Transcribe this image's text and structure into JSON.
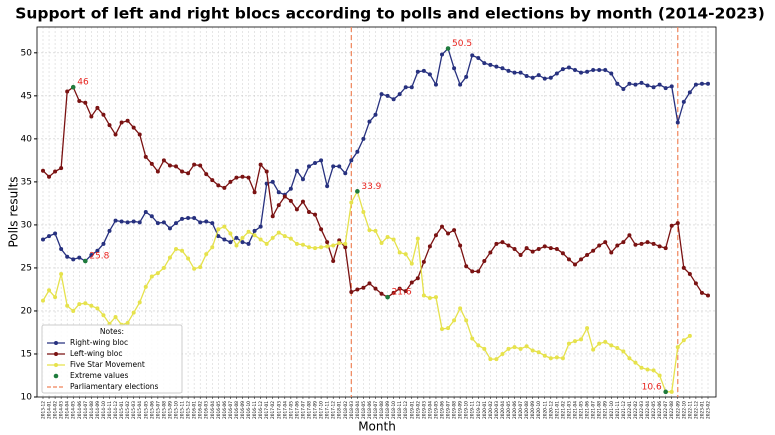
{
  "chart_data": {
    "type": "line",
    "title": "Support of left and right blocs according to polls and elections by month (2014-2023)",
    "x_label": "Month",
    "y_label": "Polls results",
    "categories": [
      "2013-12",
      "2014-01",
      "2014-02",
      "2014-03",
      "2014-04",
      "2014-05",
      "2014-06",
      "2014-07",
      "2014-08",
      "2014-09",
      "2014-10",
      "2014-11",
      "2014-12",
      "2015-01",
      "2015-02",
      "2015-03",
      "2015-04",
      "2015-05",
      "2015-06",
      "2015-07",
      "2015-08",
      "2015-09",
      "2015-10",
      "2015-11",
      "2015-12",
      "2016-01",
      "2016-02",
      "2016-03",
      "2016-04",
      "2016-05",
      "2016-06",
      "2016-07",
      "2016-08",
      "2016-09",
      "2016-10",
      "2016-11",
      "2016-12",
      "2017-01",
      "2017-02",
      "2017-03",
      "2017-04",
      "2017-05",
      "2017-06",
      "2017-07",
      "2017-08",
      "2017-09",
      "2017-10",
      "2017-11",
      "2017-12",
      "2018-01",
      "2018-02",
      "2018-03",
      "2018-04",
      "2018-05",
      "2018-06",
      "2018-07",
      "2018-08",
      "2018-09",
      "2018-10",
      "2018-11",
      "2018-12",
      "2019-01",
      "2019-02",
      "2019-03",
      "2019-04",
      "2019-05",
      "2019-06",
      "2019-07",
      "2019-08",
      "2019-09",
      "2019-10",
      "2019-11",
      "2019-12",
      "2020-01",
      "2020-02",
      "2020-03",
      "2020-04",
      "2020-05",
      "2020-06",
      "2020-07",
      "2020-08",
      "2020-09",
      "2020-10",
      "2020-11",
      "2020-12",
      "2021-01",
      "2021-02",
      "2021-03",
      "2021-04",
      "2021-05",
      "2021-06",
      "2021-07",
      "2021-08",
      "2021-09",
      "2021-10",
      "2021-11",
      "2021-12",
      "2022-01",
      "2022-02",
      "2022-03",
      "2022-04",
      "2022-05",
      "2022-06",
      "2022-07",
      "2022-08",
      "2022-09",
      "2022-10",
      "2022-11",
      "2022-12",
      "2023-01",
      "2023-02"
    ],
    "series": [
      {
        "name": "Right-wing bloc",
        "color": "#27317f",
        "values": [
          28.3,
          28.7,
          29.0,
          27.2,
          26.3,
          26.0,
          26.2,
          25.8,
          26.5,
          27.0,
          27.8,
          29.3,
          30.5,
          30.4,
          30.3,
          30.4,
          30.3,
          31.5,
          31.0,
          30.2,
          30.3,
          29.6,
          30.2,
          30.7,
          30.8,
          30.8,
          30.3,
          30.4,
          30.2,
          28.7,
          28.3,
          28.0,
          28.5,
          28.0,
          27.8,
          29.3,
          29.8,
          34.8,
          35.0,
          33.8,
          33.5,
          34.2,
          36.3,
          35.3,
          36.8,
          37.2,
          37.5,
          34.5,
          36.8,
          36.8,
          36.0,
          37.5,
          38.5,
          40.0,
          42.0,
          42.8,
          45.2,
          45.0,
          44.6,
          45.2,
          46.0,
          46.0,
          47.8,
          47.9,
          47.5,
          46.3,
          49.8,
          50.5,
          48.2,
          46.3,
          47.2,
          49.7,
          49.4,
          48.8,
          48.6,
          48.4,
          48.2,
          47.9,
          47.7,
          47.7,
          47.3,
          47.1,
          47.4,
          47.0,
          47.1,
          47.6,
          48.1,
          48.3,
          48.0,
          47.7,
          47.8,
          48.0,
          48.0,
          48.0,
          47.6,
          46.4,
          45.8,
          46.4,
          46.3,
          46.5,
          46.2,
          46.0,
          46.3,
          45.9,
          46.1,
          41.9,
          44.3,
          45.4,
          46.3,
          46.4,
          46.4
        ]
      },
      {
        "name": "Left-wing bloc",
        "color": "#7a1212",
        "values": [
          36.3,
          35.6,
          36.2,
          36.6,
          45.5,
          46.0,
          44.4,
          44.2,
          42.6,
          43.6,
          42.8,
          41.6,
          40.5,
          41.9,
          42.1,
          41.3,
          40.5,
          37.9,
          37.1,
          36.2,
          37.5,
          36.9,
          36.8,
          36.2,
          36.0,
          37.0,
          36.9,
          35.9,
          35.2,
          34.6,
          34.3,
          35.0,
          35.5,
          35.6,
          35.5,
          33.8,
          37.0,
          36.2,
          31.0,
          32.3,
          33.3,
          32.8,
          31.8,
          32.7,
          31.5,
          31.2,
          29.5,
          28.0,
          25.8,
          28.2,
          27.4,
          22.2,
          22.5,
          22.7,
          23.2,
          22.6,
          22.0,
          21.6,
          22.1,
          22.6,
          22.3,
          23.3,
          23.8,
          25.7,
          27.5,
          28.8,
          29.8,
          29.0,
          29.4,
          27.6,
          25.2,
          24.6,
          24.6,
          25.8,
          26.8,
          27.8,
          28.0,
          27.6,
          27.2,
          26.5,
          27.3,
          26.9,
          27.2,
          27.5,
          27.3,
          27.2,
          26.7,
          26.0,
          25.4,
          26.0,
          26.5,
          27.0,
          27.6,
          28.0,
          26.8,
          27.6,
          28.0,
          28.8,
          27.7,
          27.8,
          28.0,
          27.8,
          27.5,
          27.3,
          29.9,
          30.2,
          25.0,
          24.3,
          23.2,
          22.1,
          21.8
        ]
      },
      {
        "name": "Five Star Movement",
        "color": "#e6e24c",
        "values": [
          21.2,
          22.4,
          21.6,
          24.3,
          20.6,
          20.0,
          20.8,
          20.9,
          20.6,
          20.3,
          19.5,
          18.5,
          19.3,
          18.4,
          18.6,
          19.8,
          21.0,
          22.8,
          24.0,
          24.4,
          25.0,
          26.2,
          27.2,
          27.0,
          26.1,
          24.9,
          25.1,
          26.6,
          27.4,
          29.5,
          29.8,
          29.0,
          27.6,
          28.5,
          29.2,
          28.8,
          28.3,
          27.8,
          28.5,
          29.1,
          28.7,
          28.4,
          27.8,
          27.7,
          27.4,
          27.3,
          27.4,
          27.5,
          27.6,
          27.9,
          27.8,
          32.6,
          33.9,
          31.5,
          29.4,
          29.3,
          27.9,
          28.6,
          28.3,
          26.8,
          26.6,
          25.5,
          28.4,
          21.8,
          21.5,
          21.6,
          17.9,
          18.0,
          18.9,
          20.3,
          18.9,
          16.8,
          16.0,
          15.6,
          14.4,
          14.4,
          15.0,
          15.6,
          15.8,
          15.6,
          15.9,
          15.4,
          15.2,
          14.8,
          14.5,
          14.6,
          14.5,
          16.2,
          16.5,
          16.7,
          18.0,
          15.5,
          16.2,
          16.4,
          16.0,
          15.7,
          15.3,
          14.5,
          14.0,
          13.4,
          13.2,
          13.1,
          12.5,
          10.6,
          10.6,
          15.8,
          16.6,
          17.1,
          null,
          null,
          null
        ]
      }
    ],
    "extremes": {
      "name": "Extreme values",
      "color": "#1e7b3c",
      "label_color": "#e8231e",
      "points": [
        {
          "x": "2014-05",
          "value": 46
        },
        {
          "x": "2014-07",
          "value": 25.8
        },
        {
          "x": "2018-04",
          "value": 33.9
        },
        {
          "x": "2018-09",
          "value": 21.6
        },
        {
          "x": "2019-07",
          "value": 50.5
        },
        {
          "x": "2022-07",
          "value": 10.6
        }
      ]
    },
    "elections": {
      "name": "Parliamentary elections",
      "color": "#f0845a",
      "dates": [
        "2018-03",
        "2022-09"
      ]
    },
    "legend_title": "Notes:",
    "legend": "lower left",
    "ylim": [
      10,
      53
    ],
    "yticks": [
      10,
      15,
      20,
      25,
      30,
      35,
      40,
      45,
      50
    ],
    "grid": true
  }
}
